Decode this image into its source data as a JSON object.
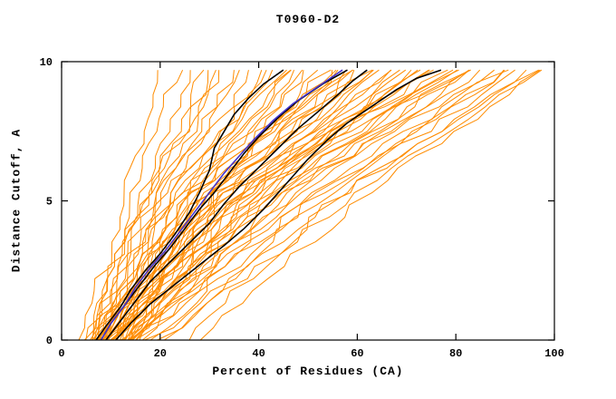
{
  "page": {
    "background": "#FFFFFF"
  },
  "chart_data": {
    "type": "line",
    "title": "T0960-D2",
    "xlabel": "Percent of Residues (CA)",
    "ylabel": "Distance Cutoff, A",
    "xlim": [
      0,
      100
    ],
    "ylim": [
      0,
      10
    ],
    "x_ticks": [
      0,
      20,
      40,
      60,
      80,
      100
    ],
    "y_ticks": [
      0,
      5,
      10
    ],
    "grid": false,
    "legend": "none",
    "axis_color": "#000000",
    "series_colors": {
      "models": "#FF8C00",
      "selected_models": "#000000",
      "best_model": "#4433CC"
    },
    "curve_top_y": 9.7,
    "highlight_series": [
      {
        "name": "selected-model-1",
        "color": "#000000",
        "points": [
          [
            7,
            0
          ],
          [
            9,
            0.5
          ],
          [
            12,
            1.2
          ],
          [
            14,
            1.8
          ],
          [
            17,
            2.5
          ],
          [
            20,
            3.1
          ],
          [
            23,
            3.8
          ],
          [
            26,
            4.6
          ],
          [
            28,
            5.3
          ],
          [
            30,
            6.1
          ],
          [
            31,
            6.9
          ],
          [
            33,
            7.5
          ],
          [
            35,
            8.1
          ],
          [
            38,
            8.7
          ],
          [
            41,
            9.2
          ],
          [
            45,
            9.7
          ]
        ]
      },
      {
        "name": "selected-model-2",
        "color": "#000000",
        "points": [
          [
            8,
            0
          ],
          [
            10,
            0.6
          ],
          [
            13,
            1.3
          ],
          [
            16,
            2.0
          ],
          [
            19,
            2.7
          ],
          [
            22,
            3.3
          ],
          [
            25,
            4.0
          ],
          [
            28,
            4.7
          ],
          [
            31,
            5.3
          ],
          [
            34,
            6.0
          ],
          [
            37,
            6.7
          ],
          [
            40,
            7.3
          ],
          [
            44,
            8.0
          ],
          [
            48,
            8.6
          ],
          [
            53,
            9.2
          ],
          [
            58,
            9.7
          ]
        ]
      },
      {
        "name": "selected-model-3",
        "color": "#000000",
        "points": [
          [
            9,
            0
          ],
          [
            12,
            0.7
          ],
          [
            15,
            1.4
          ],
          [
            18,
            2.1
          ],
          [
            22,
            2.8
          ],
          [
            26,
            3.5
          ],
          [
            30,
            4.2
          ],
          [
            33,
            4.9
          ],
          [
            36,
            5.5
          ],
          [
            40,
            6.2
          ],
          [
            44,
            6.9
          ],
          [
            48,
            7.6
          ],
          [
            52,
            8.2
          ],
          [
            56,
            8.8
          ],
          [
            59,
            9.3
          ],
          [
            62,
            9.7
          ]
        ]
      },
      {
        "name": "selected-model-4",
        "color": "#000000",
        "points": [
          [
            11,
            0
          ],
          [
            14,
            0.6
          ],
          [
            18,
            1.3
          ],
          [
            23,
            2.0
          ],
          [
            28,
            2.7
          ],
          [
            33,
            3.4
          ],
          [
            37,
            4.0
          ],
          [
            41,
            4.7
          ],
          [
            44,
            5.3
          ],
          [
            47,
            5.9
          ],
          [
            50,
            6.5
          ],
          [
            54,
            7.2
          ],
          [
            58,
            7.8
          ],
          [
            63,
            8.4
          ],
          [
            68,
            9.0
          ],
          [
            72,
            9.4
          ],
          [
            77,
            9.7
          ]
        ]
      }
    ],
    "best_series": {
      "name": "best-model",
      "color": "#4433CC",
      "points": [
        [
          8,
          0
        ],
        [
          10,
          0.6
        ],
        [
          13,
          1.3
        ],
        [
          15,
          1.9
        ],
        [
          18,
          2.6
        ],
        [
          21,
          3.2
        ],
        [
          24,
          3.9
        ],
        [
          27,
          4.6
        ],
        [
          30,
          5.3
        ],
        [
          33,
          6.0
        ],
        [
          36,
          6.6
        ],
        [
          39,
          7.2
        ],
        [
          43,
          7.9
        ],
        [
          47,
          8.5
        ],
        [
          52,
          9.1
        ],
        [
          57,
          9.7
        ]
      ]
    },
    "background_series": {
      "name": "server-models",
      "color": "#FF8C00",
      "control_y": [
        0,
        5,
        10
      ],
      "curves": [
        [
          5,
          12,
          20
        ],
        [
          5,
          14,
          24
        ],
        [
          6,
          15,
          27
        ],
        [
          6,
          16,
          30
        ],
        [
          7,
          17,
          32
        ],
        [
          7,
          18,
          34
        ],
        [
          8,
          19,
          36
        ],
        [
          8,
          20,
          38
        ],
        [
          9,
          21,
          40
        ],
        [
          9,
          22,
          42
        ],
        [
          10,
          23,
          44
        ],
        [
          10,
          24,
          46
        ],
        [
          11,
          25,
          48
        ],
        [
          11,
          26,
          50
        ],
        [
          12,
          27,
          52
        ],
        [
          12,
          28,
          54
        ],
        [
          13,
          29,
          56
        ],
        [
          13,
          30,
          58
        ],
        [
          14,
          31,
          60
        ],
        [
          14,
          32,
          62
        ],
        [
          5,
          20,
          45
        ],
        [
          6,
          22,
          48
        ],
        [
          7,
          24,
          52
        ],
        [
          8,
          26,
          55
        ],
        [
          9,
          28,
          58
        ],
        [
          10,
          30,
          62
        ],
        [
          11,
          32,
          65
        ],
        [
          12,
          34,
          68
        ],
        [
          13,
          36,
          70
        ],
        [
          14,
          38,
          72
        ],
        [
          6,
          25,
          60
        ],
        [
          7,
          27,
          64
        ],
        [
          8,
          29,
          66
        ],
        [
          9,
          31,
          70
        ],
        [
          10,
          33,
          74
        ],
        [
          11,
          35,
          76
        ],
        [
          12,
          37,
          78
        ],
        [
          13,
          39,
          80
        ],
        [
          14,
          41,
          82
        ],
        [
          15,
          43,
          84
        ],
        [
          8,
          35,
          75
        ],
        [
          9,
          37,
          78
        ],
        [
          10,
          40,
          82
        ],
        [
          11,
          42,
          85
        ],
        [
          12,
          44,
          88
        ],
        [
          13,
          46,
          90
        ],
        [
          14,
          48,
          92
        ],
        [
          15,
          50,
          94
        ],
        [
          16,
          52,
          96
        ],
        [
          18,
          55,
          98
        ],
        [
          20,
          58,
          100
        ],
        [
          22,
          50,
          93
        ],
        [
          25,
          55,
          97
        ],
        [
          28,
          60,
          100
        ],
        [
          7,
          30,
          87
        ],
        [
          6,
          28,
          82
        ],
        [
          5,
          16,
          33
        ],
        [
          16,
          36,
          66
        ],
        [
          17,
          40,
          73
        ],
        [
          19,
          45,
          86
        ]
      ]
    }
  }
}
